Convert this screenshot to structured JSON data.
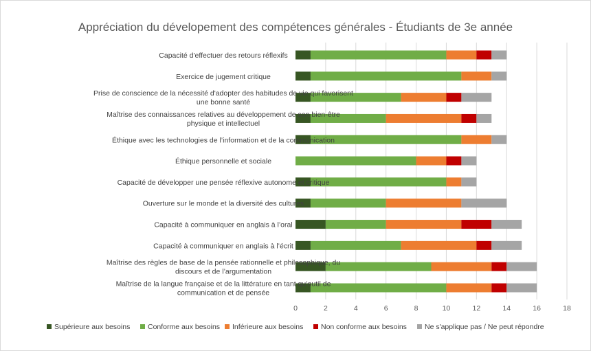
{
  "chart_data": {
    "type": "bar",
    "orientation": "horizontal",
    "stacked": true,
    "title": "Appréciation du dévelopement des compétences générales - Étudiants de 3e année",
    "xlim": [
      0,
      18
    ],
    "xticks": [
      0,
      2,
      4,
      6,
      8,
      10,
      12,
      14,
      16,
      18
    ],
    "grid": "vertical",
    "legend_position": "bottom",
    "categories": [
      [
        "Capacité d'effectuer des retours réflexifs"
      ],
      [
        "Exercice de jugement critique"
      ],
      [
        "Prise de conscience de la nécessité d'adopter des habitudes de vie qui favorisent",
        "une bonne santé"
      ],
      [
        "Maîtrise des connaissances relatives au développement de son bien-être",
        "physique et intellectuel"
      ],
      [
        "Éthique avec les technologies de l’information et de la communication"
      ],
      [
        "Éthique personnelle et sociale"
      ],
      [
        "Capacité de développer une pensée réflexive autonome et critique"
      ],
      [
        "Ouverture sur le monde et la diversité des cultures"
      ],
      [
        "Capacité à communiquer en anglais à l’oral"
      ],
      [
        "Capacité à communiquer en anglais à l’écrit"
      ],
      [
        "Maîtrise des règles de base de la pensée rationnelle et philosophique, du",
        "discours et de l’argumentation"
      ],
      [
        "Maîtrise de la langue française et de la littérature en tant qu’outil de",
        "communication et de pensée"
      ]
    ],
    "series": [
      {
        "name": "Supérieure aux besoins",
        "color": "#375623",
        "values": [
          1,
          1,
          1,
          1,
          1,
          0,
          1,
          1,
          2,
          1,
          2,
          1
        ]
      },
      {
        "name": "Conforme aux besoins",
        "color": "#70ad47",
        "values": [
          9,
          10,
          6,
          5,
          10,
          8,
          9,
          5,
          4,
          6,
          7,
          9
        ]
      },
      {
        "name": "Inférieure aux besoins",
        "color": "#ed7d31",
        "values": [
          2,
          2,
          3,
          5,
          2,
          2,
          1,
          5,
          5,
          5,
          4,
          3
        ]
      },
      {
        "name": "Non conforme aux besoins",
        "color": "#c00000",
        "values": [
          1,
          0,
          1,
          1,
          0,
          1,
          0,
          0,
          2,
          1,
          1,
          1
        ]
      },
      {
        "name": "Ne s'applique pas / Ne peut répondre",
        "color": "#a5a5a5",
        "values": [
          1,
          1,
          2,
          1,
          1,
          1,
          1,
          3,
          2,
          2,
          2,
          2
        ]
      }
    ]
  }
}
